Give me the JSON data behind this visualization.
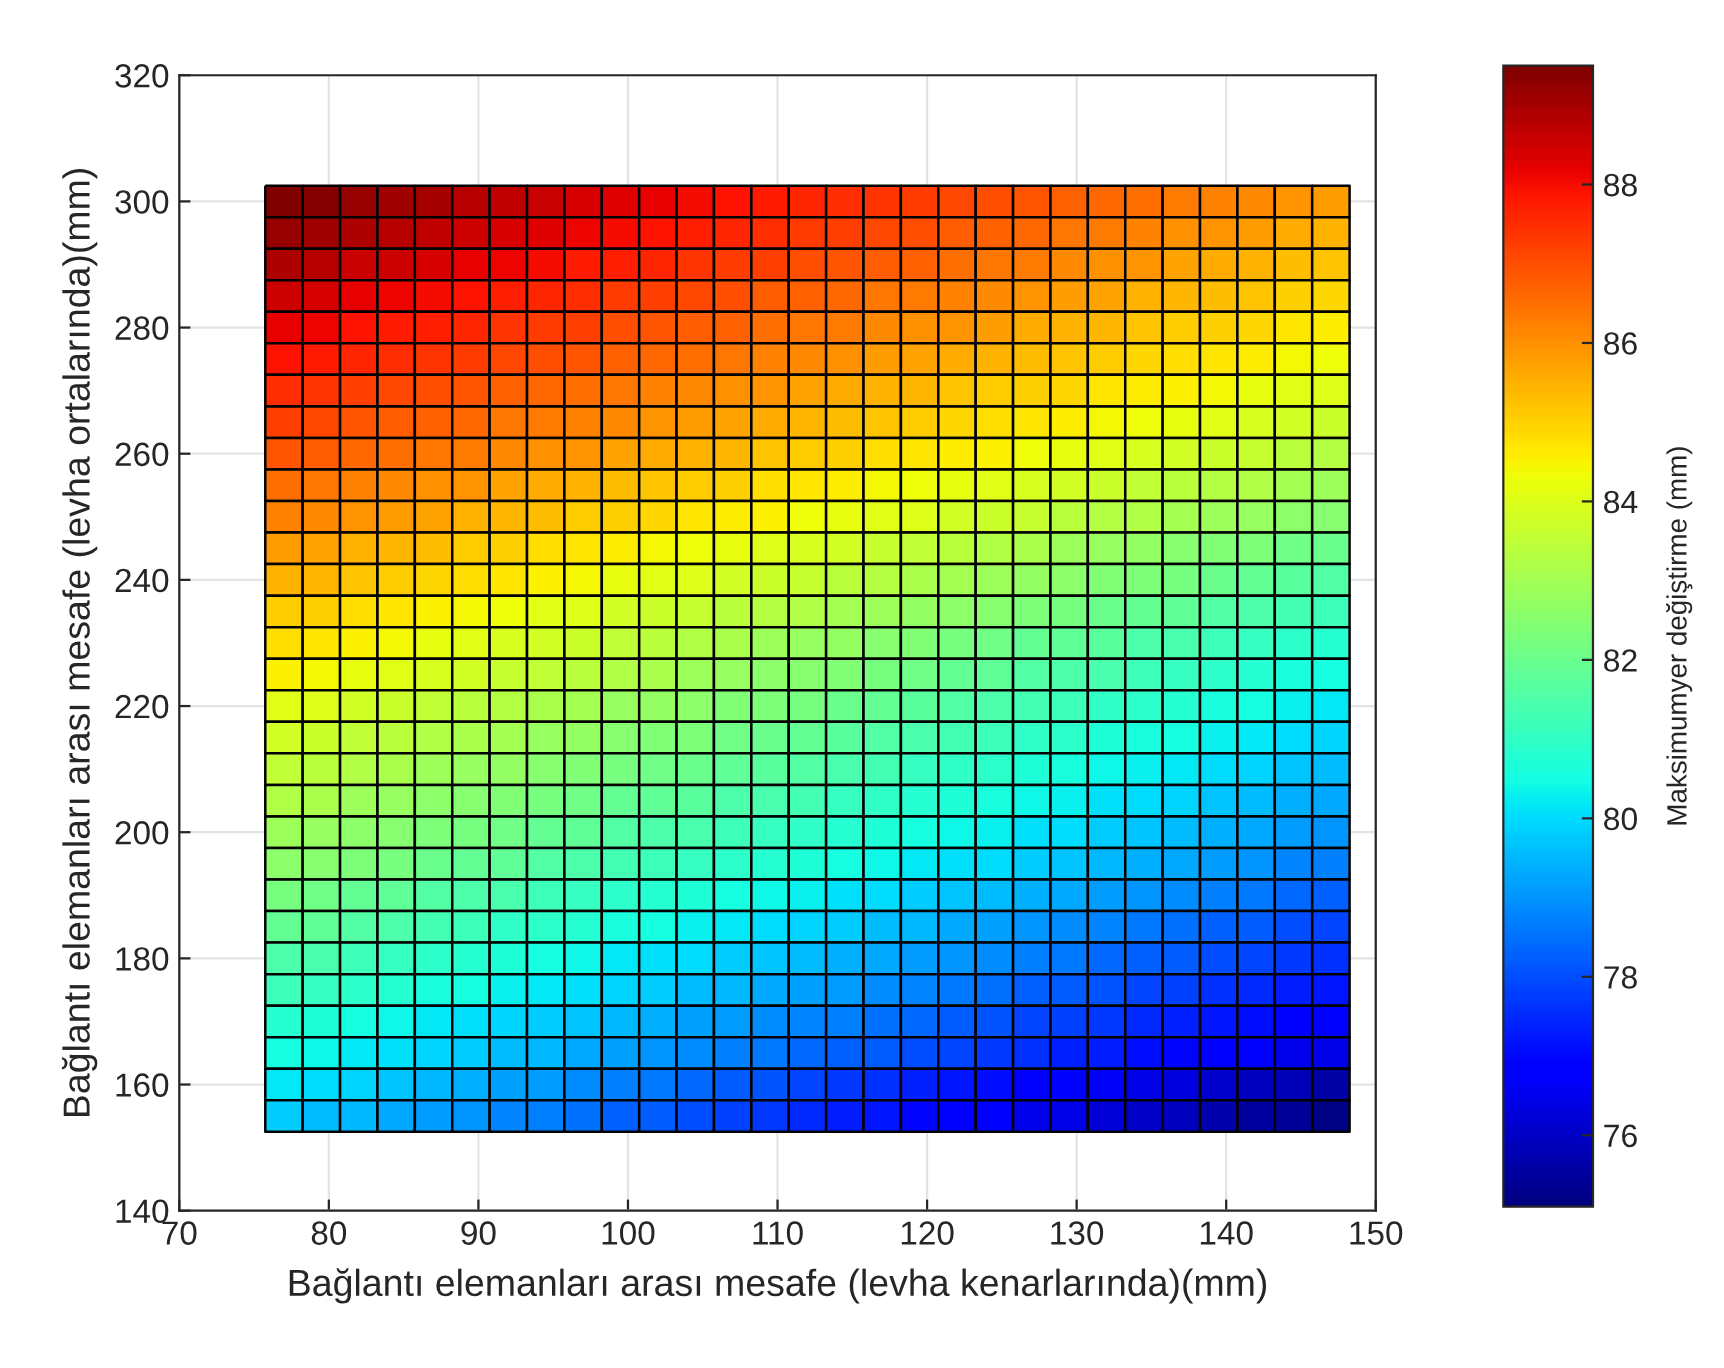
{
  "chart_data": {
    "type": "heatmap",
    "xlabel": "Bağlantı elemanları arası mesafe (levha kenarlarında)(mm)",
    "ylabel": "Bağlantı elemanları arası mesafe (levha ortalarında)(mm)",
    "clabel": "Maksimumyer değiştirme (mm)",
    "x": [
      77,
      79.5,
      82,
      84.5,
      87,
      89.5,
      92,
      94.5,
      97,
      99.5,
      102,
      104.5,
      107,
      109.5,
      112,
      114.5,
      117,
      119.5,
      122,
      124.5,
      127,
      129.5,
      132,
      134.5,
      137,
      139.5,
      142,
      144.5,
      147
    ],
    "y": [
      300,
      295,
      290,
      285,
      280,
      275,
      270,
      265,
      260,
      255,
      250,
      245,
      240,
      235,
      230,
      225,
      220,
      215,
      210,
      205,
      200,
      195,
      190,
      185,
      180,
      175,
      170,
      165,
      160,
      155
    ],
    "xlim": [
      70,
      150
    ],
    "xticks": [
      70,
      80,
      90,
      100,
      110,
      120,
      130,
      140,
      150
    ],
    "ylim": [
      140,
      320
    ],
    "yticks": [
      140,
      160,
      180,
      200,
      220,
      240,
      260,
      280,
      300,
      320
    ],
    "clim": [
      75.1,
      89.5
    ],
    "cticks": [
      76,
      78,
      80,
      82,
      84,
      86,
      88
    ],
    "grid": true,
    "cells": [
      [
        89.5,
        89.4,
        89.2,
        89.1,
        89.0,
        88.8,
        88.7,
        88.6,
        88.4,
        88.3,
        88.2,
        88.0,
        87.9,
        87.8,
        87.6,
        87.5,
        87.4,
        87.3,
        87.1,
        87.0,
        86.9,
        86.7,
        86.6,
        86.5,
        86.3,
        86.2,
        86.1,
        85.9,
        85.8
      ],
      [
        89.2,
        89.1,
        88.9,
        88.8,
        88.7,
        88.5,
        88.4,
        88.3,
        88.1,
        88.0,
        87.9,
        87.7,
        87.6,
        87.5,
        87.3,
        87.2,
        87.1,
        87.0,
        86.8,
        86.7,
        86.6,
        86.4,
        86.3,
        86.2,
        86.0,
        85.9,
        85.8,
        85.6,
        85.5
      ],
      [
        88.9,
        88.8,
        88.6,
        88.5,
        88.4,
        88.2,
        88.1,
        88.0,
        87.8,
        87.7,
        87.6,
        87.4,
        87.3,
        87.2,
        87.0,
        86.9,
        86.8,
        86.7,
        86.5,
        86.4,
        86.3,
        86.1,
        86.0,
        85.9,
        85.7,
        85.6,
        85.5,
        85.3,
        85.2
      ],
      [
        88.5,
        88.4,
        88.2,
        88.1,
        88.0,
        87.9,
        87.7,
        87.6,
        87.5,
        87.3,
        87.2,
        87.1,
        87.0,
        86.8,
        86.7,
        86.6,
        86.4,
        86.3,
        86.2,
        86.1,
        85.9,
        85.8,
        85.7,
        85.5,
        85.4,
        85.3,
        85.2,
        85.0,
        84.9
      ],
      [
        88.2,
        88.1,
        87.9,
        87.8,
        87.7,
        87.6,
        87.4,
        87.3,
        87.2,
        87.0,
        86.9,
        86.8,
        86.7,
        86.5,
        86.4,
        86.3,
        86.1,
        86.0,
        85.9,
        85.8,
        85.6,
        85.5,
        85.4,
        85.2,
        85.1,
        85.0,
        84.9,
        84.7,
        84.6
      ],
      [
        87.9,
        87.8,
        87.6,
        87.5,
        87.4,
        87.3,
        87.1,
        87.0,
        86.9,
        86.7,
        86.6,
        86.5,
        86.4,
        86.2,
        86.1,
        86.0,
        85.8,
        85.7,
        85.6,
        85.5,
        85.3,
        85.2,
        85.1,
        84.9,
        84.8,
        84.7,
        84.6,
        84.4,
        84.3
      ],
      [
        87.5,
        87.4,
        87.2,
        87.1,
        87.0,
        86.9,
        86.7,
        86.6,
        86.5,
        86.4,
        86.2,
        86.1,
        86.0,
        85.9,
        85.7,
        85.6,
        85.5,
        85.4,
        85.2,
        85.1,
        85.0,
        84.9,
        84.7,
        84.6,
        84.5,
        84.4,
        84.2,
        84.1,
        84.0
      ],
      [
        87.2,
        87.1,
        86.9,
        86.8,
        86.7,
        86.6,
        86.4,
        86.3,
        86.2,
        86.1,
        85.9,
        85.8,
        85.7,
        85.6,
        85.4,
        85.3,
        85.2,
        85.1,
        84.9,
        84.8,
        84.7,
        84.6,
        84.4,
        84.3,
        84.2,
        84.1,
        83.9,
        83.8,
        83.7
      ],
      [
        86.9,
        86.8,
        86.6,
        86.5,
        86.4,
        86.3,
        86.1,
        86.0,
        85.9,
        85.7,
        85.6,
        85.5,
        85.4,
        85.2,
        85.1,
        85.0,
        84.8,
        84.7,
        84.6,
        84.5,
        84.3,
        84.2,
        84.1,
        83.9,
        83.8,
        83.7,
        83.6,
        83.4,
        83.3
      ],
      [
        86.5,
        86.4,
        86.2,
        86.1,
        86.0,
        85.9,
        85.7,
        85.6,
        85.5,
        85.3,
        85.2,
        85.1,
        85.0,
        84.8,
        84.7,
        84.6,
        84.4,
        84.3,
        84.2,
        84.1,
        83.9,
        83.8,
        83.7,
        83.5,
        83.4,
        83.3,
        83.2,
        83.0,
        82.9
      ],
      [
        86.2,
        86.1,
        85.9,
        85.8,
        85.7,
        85.5,
        85.4,
        85.3,
        85.1,
        85.0,
        84.9,
        84.7,
        84.6,
        84.5,
        84.3,
        84.2,
        84.1,
        84.0,
        83.8,
        83.7,
        83.6,
        83.4,
        83.3,
        83.2,
        83.0,
        82.9,
        82.8,
        82.6,
        82.5
      ],
      [
        85.8,
        85.7,
        85.5,
        85.4,
        85.3,
        85.1,
        85.0,
        84.8,
        84.7,
        84.6,
        84.4,
        84.3,
        84.2,
        84.0,
        83.9,
        83.8,
        83.6,
        83.5,
        83.4,
        83.2,
        83.1,
        82.9,
        82.8,
        82.7,
        82.5,
        82.4,
        82.3,
        82.1,
        82.0
      ],
      [
        85.5,
        85.4,
        85.2,
        85.1,
        84.9,
        84.8,
        84.7,
        84.5,
        84.4,
        84.2,
        84.1,
        84.0,
        83.8,
        83.7,
        83.6,
        83.4,
        83.3,
        83.1,
        83.0,
        82.9,
        82.7,
        82.6,
        82.4,
        82.3,
        82.2,
        82.0,
        81.9,
        81.7,
        81.6
      ],
      [
        85.1,
        85.0,
        84.8,
        84.7,
        84.5,
        84.4,
        84.3,
        84.1,
        84.0,
        83.8,
        83.7,
        83.6,
        83.4,
        83.3,
        83.2,
        83.0,
        82.9,
        82.7,
        82.6,
        82.5,
        82.3,
        82.2,
        82.0,
        81.9,
        81.8,
        81.6,
        81.5,
        81.3,
        81.2
      ],
      [
        84.8,
        84.7,
        84.5,
        84.4,
        84.2,
        84.1,
        83.9,
        83.8,
        83.7,
        83.5,
        83.4,
        83.2,
        83.1,
        82.9,
        82.8,
        82.7,
        82.5,
        82.4,
        82.2,
        82.1,
        81.9,
        81.8,
        81.7,
        81.5,
        81.4,
        81.2,
        81.1,
        80.9,
        80.8
      ],
      [
        84.5,
        84.4,
        84.2,
        84.1,
        83.9,
        83.8,
        83.6,
        83.5,
        83.4,
        83.2,
        83.1,
        82.9,
        82.8,
        82.6,
        82.5,
        82.4,
        82.2,
        82.1,
        81.9,
        81.8,
        81.6,
        81.5,
        81.4,
        81.2,
        81.1,
        80.9,
        80.8,
        80.6,
        80.5
      ],
      [
        84.1,
        84.0,
        83.8,
        83.7,
        83.5,
        83.4,
        83.3,
        83.1,
        83.0,
        82.8,
        82.7,
        82.6,
        82.4,
        82.3,
        82.2,
        82.0,
        81.9,
        81.7,
        81.6,
        81.5,
        81.3,
        81.2,
        81.0,
        80.9,
        80.8,
        80.6,
        80.5,
        80.3,
        80.2
      ],
      [
        83.8,
        83.7,
        83.5,
        83.4,
        83.2,
        83.1,
        83.0,
        82.8,
        82.7,
        82.5,
        82.4,
        82.3,
        82.1,
        82.0,
        81.9,
        81.7,
        81.6,
        81.4,
        81.3,
        81.2,
        81.0,
        80.9,
        80.7,
        80.6,
        80.5,
        80.3,
        80.2,
        80.0,
        79.9
      ],
      [
        83.5,
        83.4,
        83.2,
        83.1,
        82.9,
        82.8,
        82.7,
        82.5,
        82.4,
        82.2,
        82.1,
        82.0,
        81.8,
        81.7,
        81.6,
        81.4,
        81.3,
        81.1,
        81.0,
        80.9,
        80.7,
        80.6,
        80.4,
        80.3,
        80.2,
        80.0,
        79.9,
        79.7,
        79.6
      ],
      [
        83.2,
        83.1,
        82.9,
        82.8,
        82.6,
        82.5,
        82.4,
        82.2,
        82.1,
        81.9,
        81.8,
        81.7,
        81.5,
        81.4,
        81.3,
        81.1,
        81.0,
        80.8,
        80.7,
        80.6,
        80.4,
        80.3,
        80.1,
        80.0,
        79.9,
        79.7,
        79.6,
        79.4,
        79.3
      ],
      [
        82.9,
        82.8,
        82.6,
        82.5,
        82.3,
        82.2,
        82.1,
        81.9,
        81.8,
        81.6,
        81.5,
        81.4,
        81.2,
        81.1,
        81.0,
        80.8,
        80.7,
        80.5,
        80.4,
        80.3,
        80.1,
        80.0,
        79.8,
        79.7,
        79.6,
        79.4,
        79.3,
        79.1,
        79.0
      ],
      [
        82.6,
        82.5,
        82.3,
        82.2,
        82.0,
        81.9,
        81.8,
        81.6,
        81.5,
        81.3,
        81.2,
        81.1,
        80.9,
        80.8,
        80.7,
        80.5,
        80.4,
        80.2,
        80.1,
        80.0,
        79.8,
        79.7,
        79.5,
        79.4,
        79.3,
        79.1,
        79.0,
        78.8,
        78.7
      ],
      [
        82.2,
        82.1,
        81.9,
        81.8,
        81.6,
        81.5,
        81.4,
        81.2,
        81.1,
        80.9,
        80.8,
        80.7,
        80.5,
        80.4,
        80.3,
        80.1,
        80.0,
        79.8,
        79.7,
        79.6,
        79.4,
        79.3,
        79.1,
        79.0,
        78.9,
        78.7,
        78.6,
        78.4,
        78.3
      ],
      [
        81.9,
        81.8,
        81.6,
        81.5,
        81.3,
        81.2,
        81.0,
        80.9,
        80.8,
        80.6,
        80.5,
        80.3,
        80.2,
        80.0,
        79.9,
        79.8,
        79.6,
        79.5,
        79.3,
        79.2,
        79.0,
        78.9,
        78.8,
        78.6,
        78.5,
        78.3,
        78.2,
        78.0,
        77.9
      ],
      [
        81.5,
        81.4,
        81.2,
        81.1,
        80.9,
        80.8,
        80.7,
        80.5,
        80.4,
        80.2,
        80.1,
        80.0,
        79.8,
        79.7,
        79.6,
        79.4,
        79.3,
        79.1,
        79.0,
        78.9,
        78.7,
        78.6,
        78.4,
        78.3,
        78.2,
        78.0,
        77.9,
        77.7,
        77.6
      ],
      [
        81.2,
        81.1,
        80.9,
        80.8,
        80.6,
        80.5,
        80.3,
        80.2,
        80.1,
        79.9,
        79.8,
        79.6,
        79.5,
        79.3,
        79.2,
        79.1,
        78.9,
        78.8,
        78.6,
        78.5,
        78.3,
        78.2,
        78.1,
        77.9,
        77.8,
        77.6,
        77.5,
        77.3,
        77.2
      ],
      [
        80.8,
        80.7,
        80.5,
        80.4,
        80.2,
        80.1,
        79.9,
        79.8,
        79.7,
        79.5,
        79.4,
        79.2,
        79.1,
        78.9,
        78.8,
        78.7,
        78.5,
        78.4,
        78.2,
        78.1,
        77.9,
        77.8,
        77.7,
        77.5,
        77.4,
        77.2,
        77.1,
        76.9,
        76.8
      ],
      [
        80.5,
        80.4,
        80.2,
        80.1,
        79.9,
        79.8,
        79.6,
        79.5,
        79.3,
        79.2,
        79.0,
        78.9,
        78.7,
        78.6,
        78.4,
        78.3,
        78.2,
        78.0,
        77.9,
        77.7,
        77.6,
        77.4,
        77.3,
        77.1,
        77.0,
        76.8,
        76.7,
        76.5,
        76.4
      ],
      [
        80.2,
        80.0,
        79.9,
        79.7,
        79.5,
        79.4,
        79.2,
        79.1,
        78.9,
        78.7,
        78.6,
        78.4,
        78.2,
        78.1,
        77.9,
        77.7,
        77.6,
        77.4,
        77.2,
        77.1,
        76.9,
        76.8,
        76.6,
        76.4,
        76.3,
        76.1,
        75.9,
        75.8,
        75.6
      ],
      [
        79.8,
        79.6,
        79.5,
        79.3,
        79.1,
        79.0,
        78.8,
        78.7,
        78.5,
        78.3,
        78.2,
        78.0,
        77.8,
        77.7,
        77.5,
        77.3,
        77.2,
        77.0,
        76.8,
        76.7,
        76.5,
        76.4,
        76.2,
        76.0,
        75.9,
        75.7,
        75.5,
        75.4,
        75.2
      ]
    ]
  }
}
